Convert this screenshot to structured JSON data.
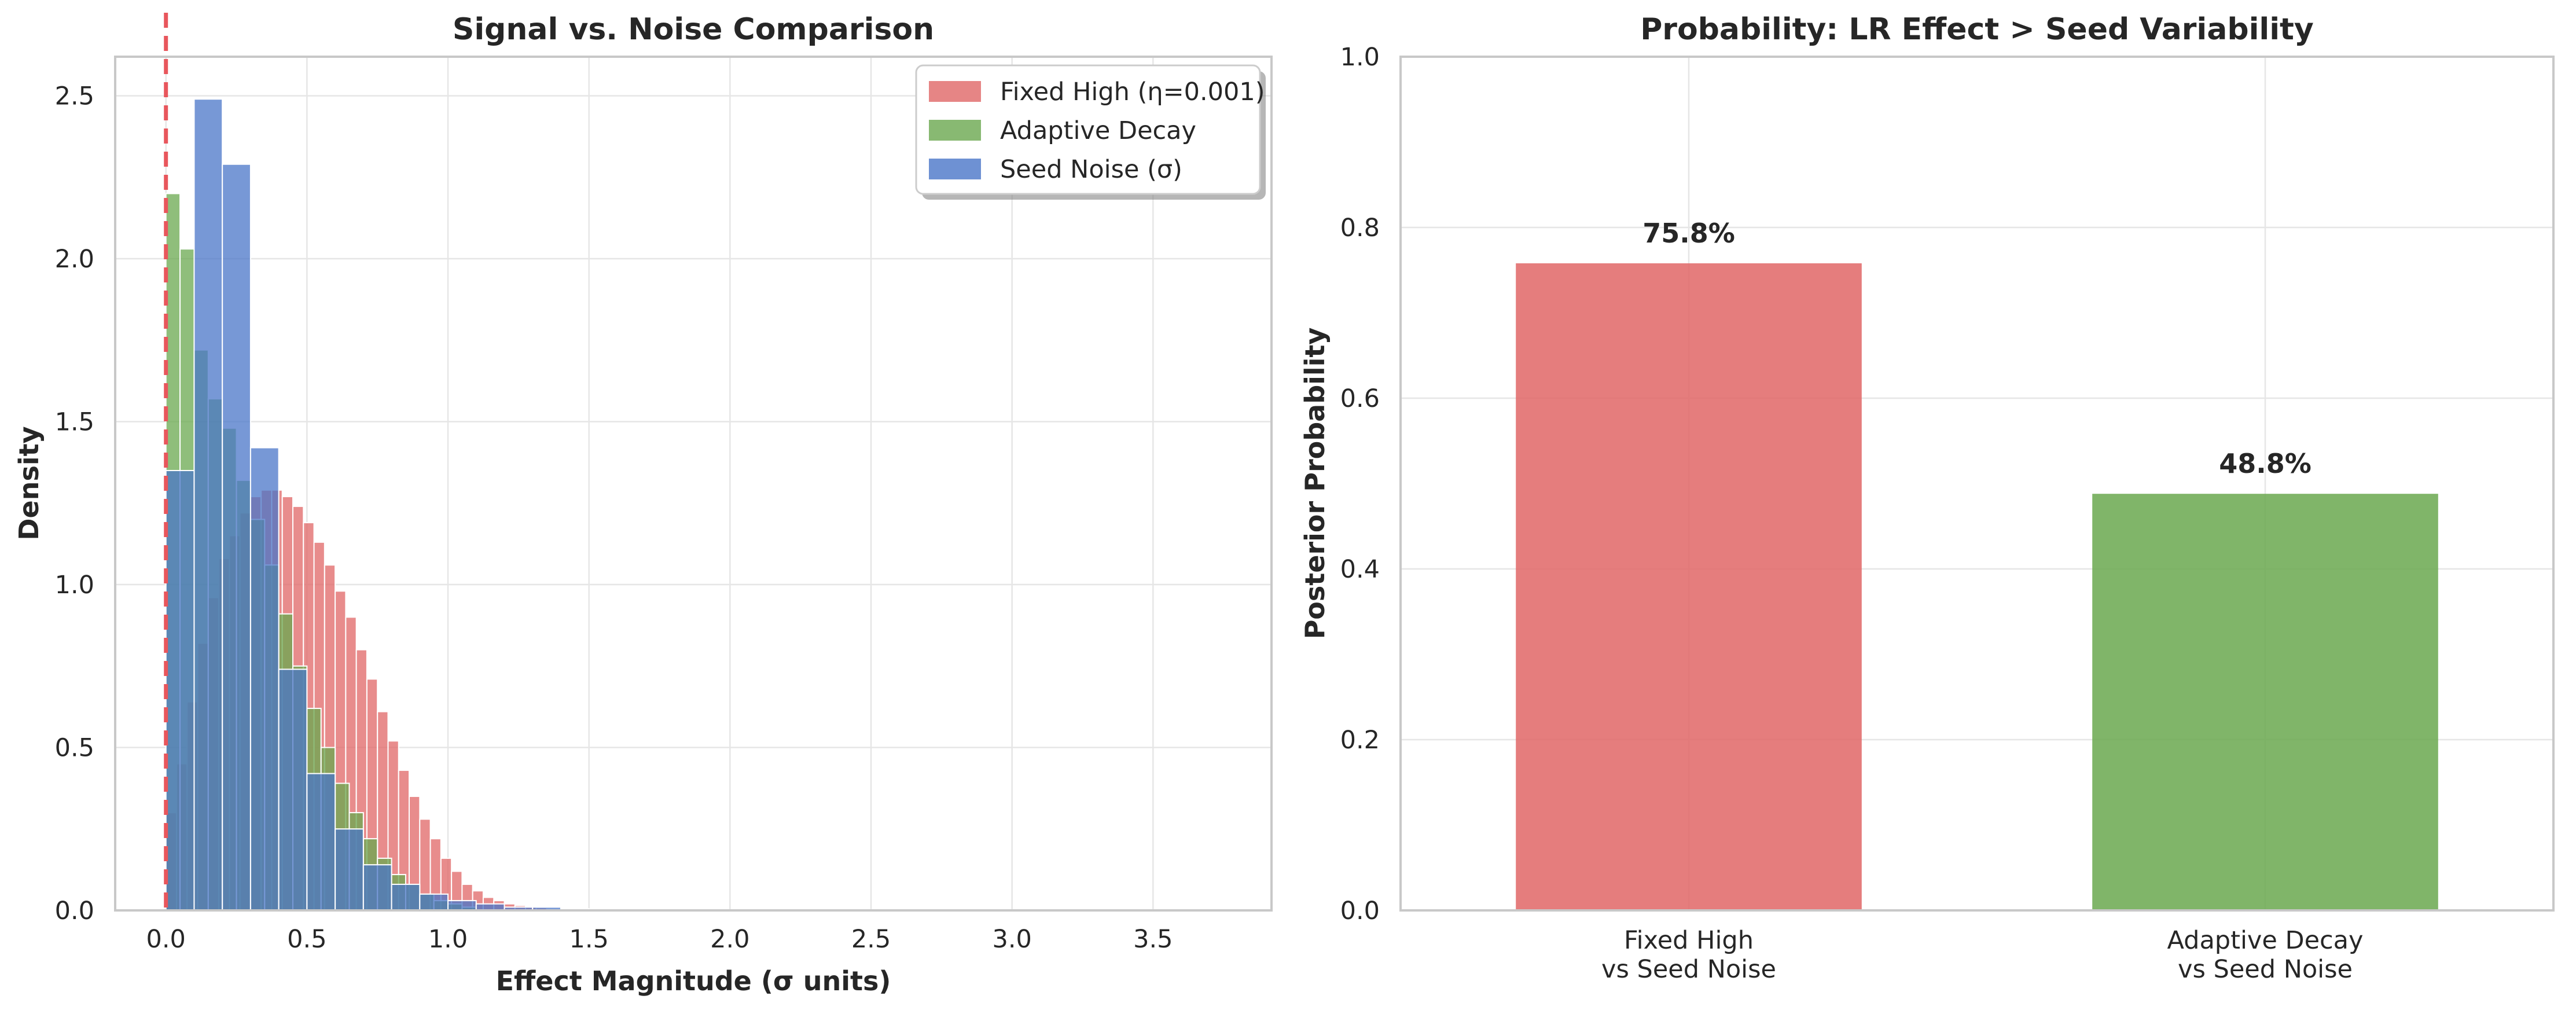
{
  "chart_data": [
    {
      "type": "histogram",
      "title": "Signal vs. Noise Comparison",
      "xlabel": "Effect Magnitude (σ units)",
      "ylabel": "Density",
      "xlim": [
        -0.18,
        3.92
      ],
      "ylim": [
        0,
        2.62
      ],
      "xticks": [
        "0.0",
        "0.5",
        "1.0",
        "1.5",
        "2.0",
        "2.5",
        "3.0",
        "3.5"
      ],
      "yticks": [
        "0.0",
        "0.5",
        "1.0",
        "1.5",
        "2.0",
        "2.5"
      ],
      "grid": true,
      "legend_position": "top-right",
      "reference_line": {
        "x": 0,
        "style": "dashed",
        "color": "#e8565c"
      },
      "series": [
        {
          "name": "Fixed High (η=0.001)",
          "color": "#e06666",
          "bin_start": 0.0,
          "bin_width": 0.0375,
          "values": [
            0.3,
            0.45,
            0.64,
            0.82,
            0.96,
            1.08,
            1.15,
            1.22,
            1.27,
            1.29,
            1.29,
            1.27,
            1.24,
            1.19,
            1.13,
            1.06,
            0.98,
            0.9,
            0.8,
            0.71,
            0.61,
            0.52,
            0.43,
            0.35,
            0.28,
            0.22,
            0.16,
            0.12,
            0.08,
            0.06,
            0.04,
            0.03,
            0.02,
            0.015,
            0.01,
            0.008,
            0.005,
            0.003
          ]
        },
        {
          "name": "Adaptive Decay",
          "color": "#6aa84f",
          "bin_start": 0.0,
          "bin_width": 0.05,
          "values": [
            2.2,
            2.03,
            1.72,
            1.57,
            1.48,
            1.32,
            1.2,
            1.06,
            0.91,
            0.75,
            0.62,
            0.5,
            0.39,
            0.3,
            0.22,
            0.16,
            0.11,
            0.08,
            0.05,
            0.03,
            0.02,
            0.01
          ]
        },
        {
          "name": "Seed Noise (σ)",
          "color": "#4a76c8",
          "bin_start": 0.0,
          "bin_width": 0.1,
          "values": [
            1.35,
            2.49,
            2.29,
            1.42,
            0.74,
            0.42,
            0.25,
            0.14,
            0.08,
            0.05,
            0.03,
            0.02,
            0.01,
            0.01,
            0.005,
            0.003
          ]
        }
      ]
    },
    {
      "type": "bar",
      "title": "Probability: LR Effect > Seed Variability",
      "xlabel": "",
      "ylabel": "Posterior Probability",
      "ylim": [
        0,
        1.0
      ],
      "yticks": [
        "0.0",
        "0.2",
        "0.4",
        "0.6",
        "0.8",
        "1.0"
      ],
      "grid": true,
      "categories": [
        {
          "line1": "Fixed High",
          "line2": "vs Seed Noise"
        },
        {
          "line1": "Adaptive Decay",
          "line2": "vs Seed Noise"
        }
      ],
      "values": [
        0.758,
        0.488
      ],
      "value_labels": [
        "75.8%",
        "48.8%"
      ],
      "colors": [
        "#e06666",
        "#6aa84f"
      ]
    }
  ]
}
